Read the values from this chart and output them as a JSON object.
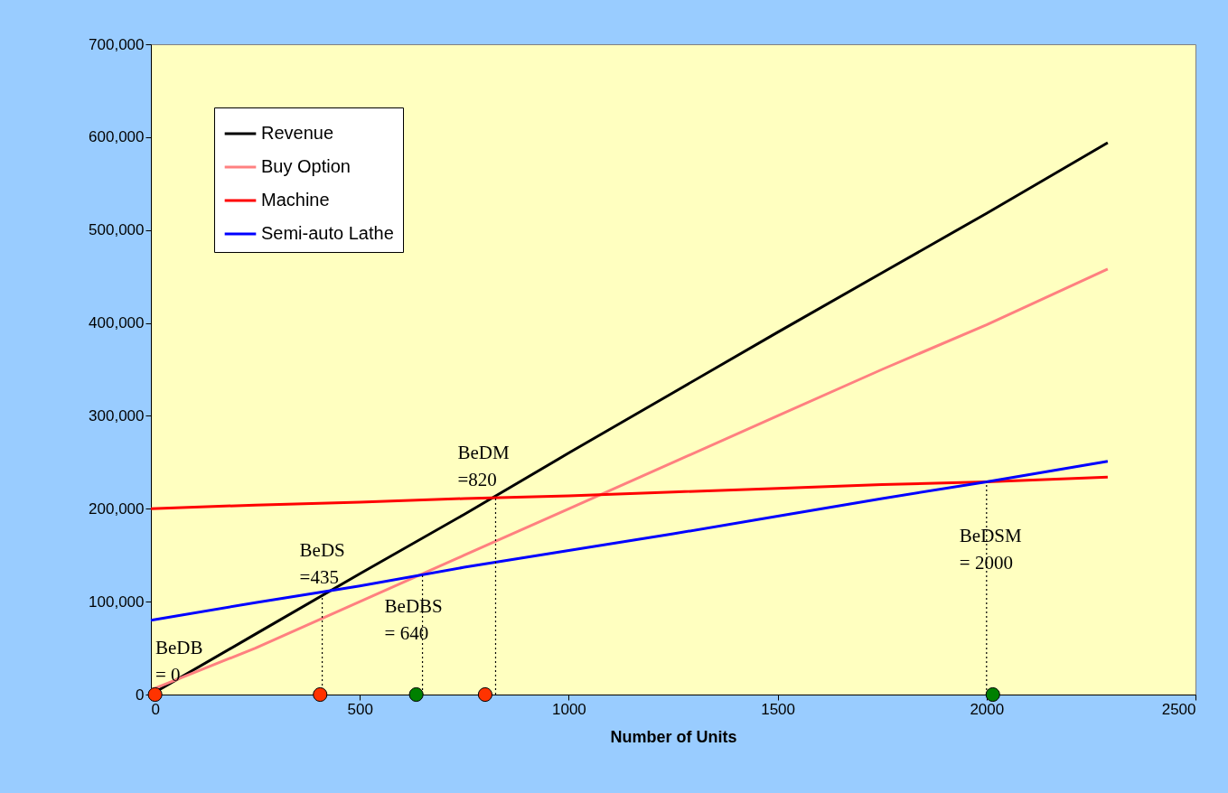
{
  "chart_data": {
    "type": "line",
    "xlabel": "Number of Units",
    "x": [
      0,
      250,
      500,
      750,
      1000,
      1250,
      1500,
      1750,
      2000,
      2290
    ],
    "series": [
      {
        "name": "Revenue",
        "color": "#000000",
        "values": [
          0,
          65000,
          130000,
          194000,
          260000,
          325000,
          390000,
          454000,
          518000,
          594000
        ]
      },
      {
        "name": "Buy Option",
        "color": "#ff8080",
        "values": [
          5000,
          50000,
          100000,
          150000,
          200000,
          250000,
          300000,
          350000,
          398000,
          458000
        ]
      },
      {
        "name": "Machine",
        "color": "#ff0000",
        "values": [
          200000,
          204000,
          207000,
          211000,
          214000,
          218000,
          222000,
          226000,
          229000,
          234000
        ]
      },
      {
        "name": "Semi-auto Lathe",
        "color": "#0000ff",
        "values": [
          80000,
          99000,
          117000,
          137000,
          155000,
          173000,
          192000,
          211000,
          229000,
          251000
        ]
      },
      {
        "type": "line",
        "line_style": "dotted",
        "color": "#000000",
        "x": [
          410,
          410
        ],
        "values": [
          0,
          108000
        ]
      },
      {
        "type": "line",
        "line_style": "dotted",
        "color": "#000000",
        "x": [
          650,
          650
        ],
        "values": [
          0,
          128000
        ]
      },
      {
        "type": "line",
        "line_style": "dotted",
        "color": "#000000",
        "x": [
          825,
          825
        ],
        "values": [
          0,
          213000
        ]
      },
      {
        "type": "line",
        "line_style": "dotted",
        "color": "#000000",
        "x": [
          2000,
          2000
        ],
        "values": [
          0,
          229000
        ]
      },
      {
        "type": "scatter",
        "marker": "circle",
        "x": [
          10,
          405,
          800,
          635,
          2015
        ],
        "values": [
          0,
          0,
          0,
          0,
          0
        ],
        "colors": [
          "#ff3300",
          "#ff3300",
          "#ff3300",
          "#008000",
          "#008000"
        ]
      }
    ],
    "annotations": [
      {
        "text": "BeDB\n= 0",
        "x": 0,
        "y": 0
      },
      {
        "text": "BeDS\n=435",
        "x": 410,
        "y": 108000
      },
      {
        "text": "BeDBS\n= 640",
        "x": 650,
        "y": 128000
      },
      {
        "text": "BeDM\n=820",
        "x": 825,
        "y": 213000
      },
      {
        "text": "BeDSM\n= 2000",
        "x": 2000,
        "y": 229000
      }
    ],
    "xlim": [
      0,
      2500
    ],
    "xticks": [
      0,
      500,
      1000,
      1500,
      2000,
      2500
    ],
    "ylim": [
      0,
      700000
    ],
    "yticks": [
      {
        "value": 0,
        "label": "0"
      },
      {
        "value": 100000,
        "label": "100,000"
      },
      {
        "value": 200000,
        "label": "200,000"
      },
      {
        "value": 300000,
        "label": "300,000"
      },
      {
        "value": 400000,
        "label": "400,000"
      },
      {
        "value": 500000,
        "label": "500,000"
      },
      {
        "value": 600000,
        "label": "600,000"
      },
      {
        "value": 700000,
        "label": "700,000"
      }
    ],
    "legend": "top left",
    "grid": false
  }
}
